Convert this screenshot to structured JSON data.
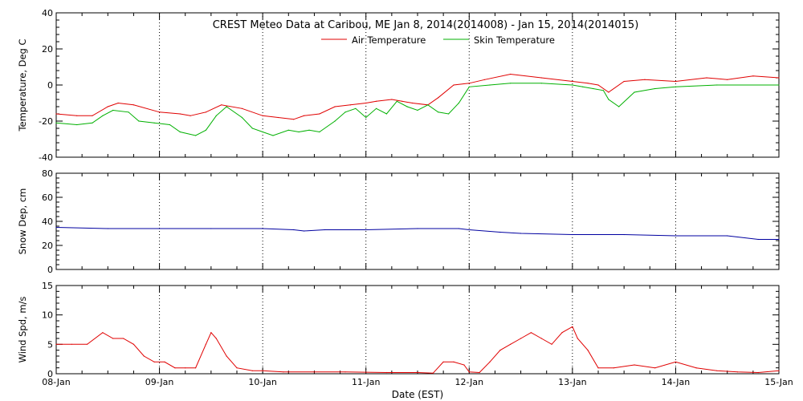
{
  "title": "CREST Meteo Data at Caribou, ME   Jan  8, 2014(2014008) - Jan 15, 2014(2014015)",
  "xlabel": "Date (EST)",
  "colors": {
    "air": "#e00000",
    "skin": "#00b000",
    "snow": "#0000a0",
    "wind": "#e00000"
  },
  "chart_data": [
    {
      "type": "line",
      "ylabel": "Temperature, Deg C",
      "ylim": [
        -40,
        40
      ],
      "yticks": [
        -40,
        -20,
        0,
        20,
        40
      ],
      "xlim": [
        0,
        7
      ],
      "x_unit": "days since 08-Jan",
      "xtick_labels": [
        "08-Jan",
        "09-Jan",
        "10-Jan",
        "11-Jan",
        "12-Jan",
        "13-Jan",
        "14-Jan",
        "15-Jan"
      ],
      "legend": "top-center",
      "grid": true,
      "series": [
        {
          "name": "Air Temperature",
          "color": "#e00000",
          "x": [
            0,
            0.2,
            0.35,
            0.5,
            0.6,
            0.75,
            1.0,
            1.2,
            1.3,
            1.45,
            1.6,
            1.8,
            2.0,
            2.15,
            2.3,
            2.4,
            2.55,
            2.7,
            2.85,
            3.0,
            3.1,
            3.25,
            3.35,
            3.45,
            3.6,
            3.7,
            3.85,
            4.0,
            4.15,
            4.4,
            4.7,
            5.0,
            5.15,
            5.25,
            5.35,
            5.5,
            5.7,
            6.0,
            6.3,
            6.5,
            6.75,
            7.0
          ],
          "y": [
            -16,
            -17,
            -17,
            -12,
            -10,
            -11,
            -15,
            -16,
            -17,
            -15,
            -11,
            -13,
            -17,
            -18,
            -19,
            -17,
            -16,
            -12,
            -11,
            -10,
            -9,
            -8,
            -9,
            -10,
            -11,
            -7,
            0,
            1,
            3,
            6,
            4,
            2,
            1,
            0,
            -4,
            2,
            3,
            2,
            4,
            3,
            5,
            4
          ]
        },
        {
          "name": "Skin Temperature",
          "color": "#00b000",
          "x": [
            0,
            0.2,
            0.35,
            0.45,
            0.55,
            0.7,
            0.8,
            0.95,
            1.1,
            1.2,
            1.35,
            1.45,
            1.55,
            1.65,
            1.8,
            1.9,
            2.0,
            2.1,
            2.25,
            2.35,
            2.45,
            2.55,
            2.7,
            2.8,
            2.9,
            3.0,
            3.1,
            3.2,
            3.3,
            3.4,
            3.5,
            3.6,
            3.7,
            3.8,
            3.9,
            4.0,
            4.2,
            4.4,
            4.7,
            5.0,
            5.1,
            5.2,
            5.3,
            5.35,
            5.45,
            5.6,
            5.8,
            6.0,
            6.4,
            7.0
          ],
          "y": [
            -21,
            -22,
            -21,
            -17,
            -14,
            -15,
            -20,
            -21,
            -22,
            -26,
            -28,
            -25,
            -17,
            -12,
            -18,
            -24,
            -26,
            -28,
            -25,
            -26,
            -25,
            -26,
            -20,
            -15,
            -13,
            -18,
            -13,
            -16,
            -9,
            -12,
            -14,
            -11,
            -15,
            -16,
            -10,
            -1,
            0,
            1,
            1,
            0,
            -1,
            -2,
            -3,
            -8,
            -12,
            -4,
            -2,
            -1,
            0,
            0
          ]
        }
      ]
    },
    {
      "type": "line",
      "ylabel": "Snow Dep, cm",
      "ylim": [
        0,
        80
      ],
      "yticks": [
        0,
        20,
        40,
        60,
        80
      ],
      "xlim": [
        0,
        7
      ],
      "x_unit": "days since 08-Jan",
      "grid": true,
      "series": [
        {
          "color": "#0000a0",
          "x": [
            0,
            0.5,
            1.0,
            1.5,
            2.0,
            2.3,
            2.4,
            2.6,
            3.0,
            3.5,
            3.9,
            4.0,
            4.3,
            4.5,
            5.0,
            5.5,
            6.0,
            6.5,
            6.8,
            7.0
          ],
          "y": [
            35,
            34,
            34,
            34,
            34,
            33,
            32,
            33,
            33,
            34,
            34,
            33,
            31,
            30,
            29,
            29,
            28,
            28,
            25,
            25
          ]
        }
      ]
    },
    {
      "type": "line",
      "ylabel": "Wind Spd, m/s",
      "ylim": [
        0,
        15
      ],
      "yticks": [
        0,
        5,
        10,
        15
      ],
      "xlim": [
        0,
        7
      ],
      "x_unit": "days since 08-Jan",
      "grid": true,
      "series": [
        {
          "color": "#e00000",
          "x": [
            0,
            0.15,
            0.3,
            0.45,
            0.55,
            0.65,
            0.75,
            0.85,
            0.95,
            1.05,
            1.15,
            1.25,
            1.35,
            1.45,
            1.5,
            1.55,
            1.65,
            1.75,
            1.9,
            2.0,
            2.2,
            2.5,
            2.8,
            3.2,
            3.5,
            3.65,
            3.75,
            3.85,
            3.95,
            4.0,
            4.1,
            4.2,
            4.3,
            4.4,
            4.5,
            4.6,
            4.7,
            4.8,
            4.9,
            5.0,
            5.05,
            5.15,
            5.25,
            5.4,
            5.6,
            5.8,
            6.0,
            6.2,
            6.4,
            6.6,
            6.8,
            7.0
          ],
          "y": [
            5,
            5,
            5,
            7,
            6,
            6,
            5,
            3,
            2,
            2,
            1,
            1,
            1,
            5,
            7,
            6,
            3,
            1,
            0.5,
            0.5,
            0.3,
            0.3,
            0.3,
            0.2,
            0.2,
            0.1,
            2,
            2,
            1.5,
            0.3,
            0.2,
            2,
            4,
            5,
            6,
            7,
            6,
            5,
            7,
            8,
            6,
            4,
            1,
            1,
            1.5,
            1,
            2,
            1,
            0.5,
            0.3,
            0.2,
            0.5
          ]
        }
      ]
    }
  ]
}
